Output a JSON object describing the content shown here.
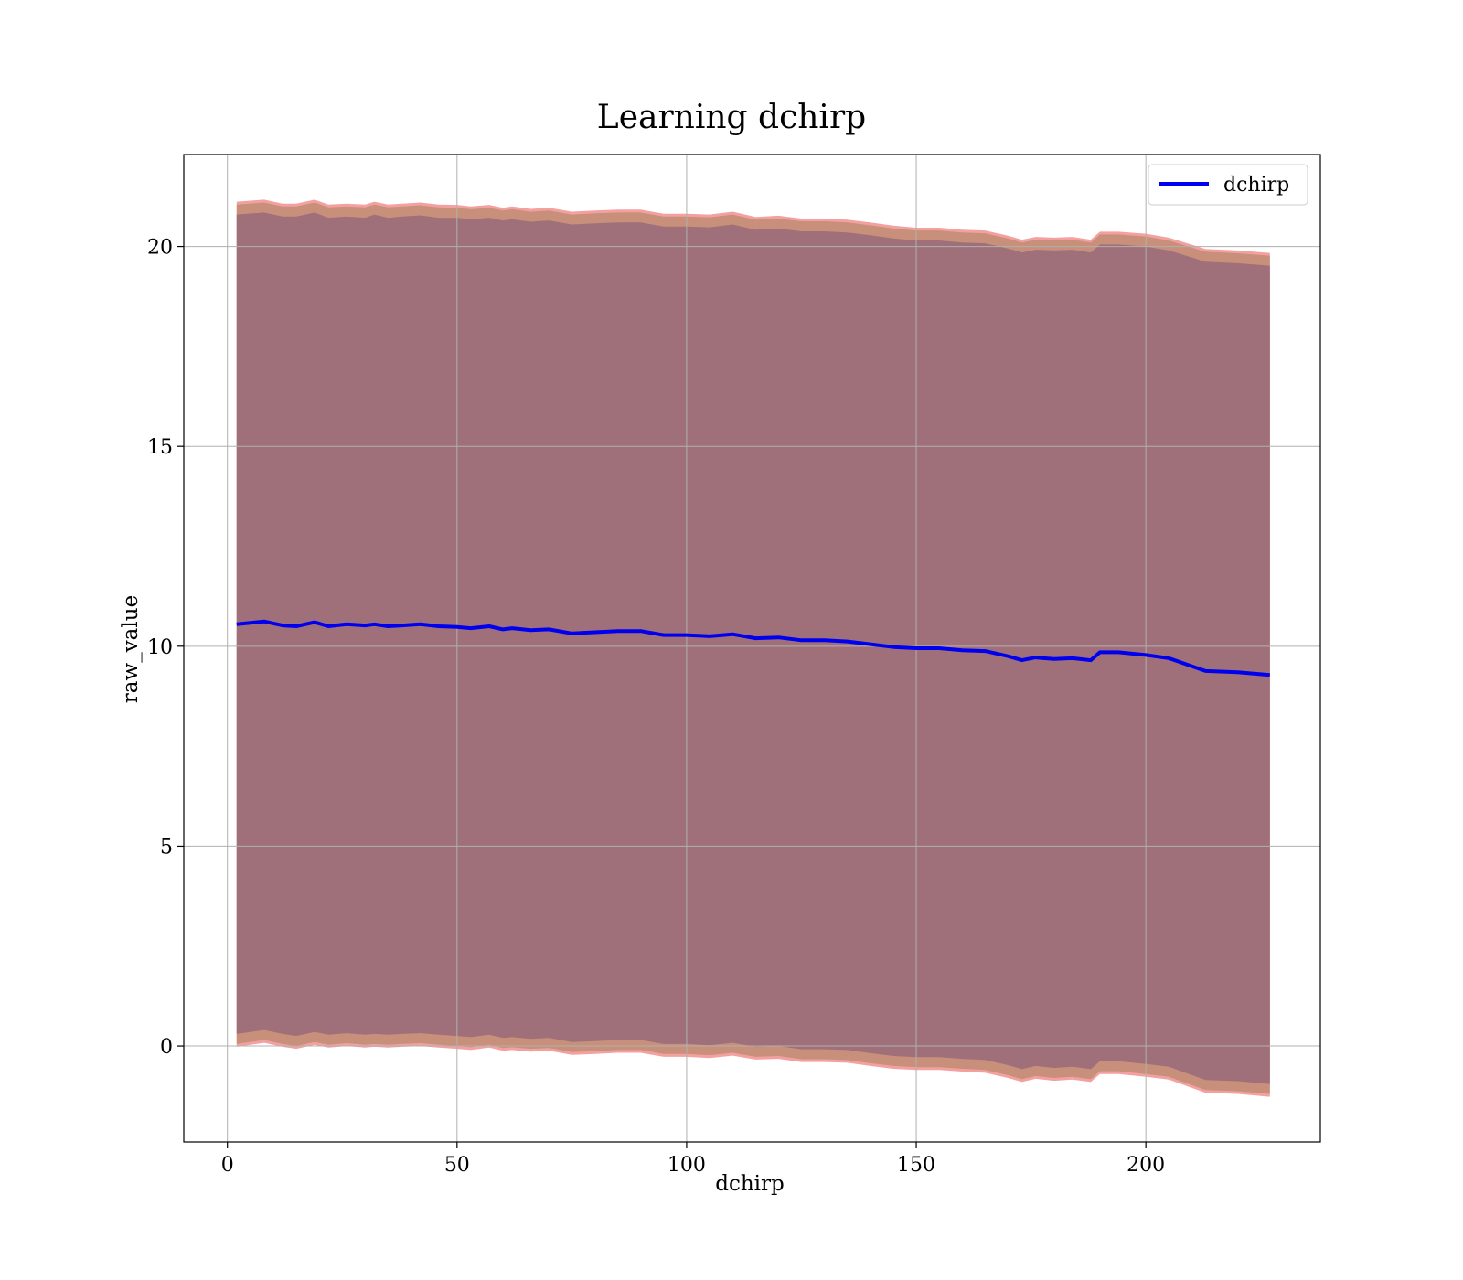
{
  "chart_data": {
    "type": "line",
    "title": "Learning dchirp",
    "xlabel": "dchirp",
    "ylabel": "raw_value",
    "xlim": [
      -9.5,
      238
    ],
    "ylim": [
      -2.4,
      22.3
    ],
    "xticks": [
      0,
      50,
      100,
      150,
      200
    ],
    "yticks": [
      0,
      5,
      10,
      15,
      20
    ],
    "xtick_labels": [
      "0",
      "50",
      "100",
      "150",
      "200"
    ],
    "ytick_labels": [
      "0",
      "5",
      "10",
      "15",
      "20"
    ],
    "grid": true,
    "legend": {
      "placement": "top-right",
      "entries": [
        "dchirp"
      ]
    },
    "colors": {
      "line": "#0000ee",
      "outer_band": "#f4a0a0",
      "middle_band": "#c8907a",
      "inner_band": "#a0707a",
      "grid": "#b0b0b0"
    },
    "series": [
      {
        "name": "dchirp",
        "x": [
          2,
          8,
          12,
          15,
          19,
          22,
          26,
          30,
          32,
          35,
          38,
          42,
          46,
          50,
          53,
          57,
          60,
          62,
          66,
          70,
          75,
          80,
          85,
          90,
          95,
          100,
          105,
          110,
          115,
          120,
          125,
          130,
          135,
          140,
          145,
          150,
          155,
          160,
          165,
          170,
          173,
          176,
          180,
          184,
          188,
          190,
          194,
          200,
          205,
          213,
          220,
          227
        ],
        "y": [
          10.55,
          10.62,
          10.52,
          10.5,
          10.6,
          10.5,
          10.55,
          10.52,
          10.55,
          10.5,
          10.52,
          10.55,
          10.5,
          10.48,
          10.45,
          10.5,
          10.42,
          10.45,
          10.4,
          10.42,
          10.32,
          10.35,
          10.38,
          10.38,
          10.28,
          10.28,
          10.25,
          10.3,
          10.2,
          10.22,
          10.15,
          10.15,
          10.12,
          10.05,
          9.98,
          9.95,
          9.95,
          9.9,
          9.88,
          9.75,
          9.65,
          9.72,
          9.68,
          9.7,
          9.65,
          9.85,
          9.85,
          9.78,
          9.7,
          9.38,
          9.35,
          9.28
        ],
        "bands": {
          "inner_upper": [
            20.8,
            20.85,
            20.75,
            20.75,
            20.85,
            20.72,
            20.75,
            20.72,
            20.8,
            20.72,
            20.75,
            20.78,
            20.72,
            20.72,
            20.68,
            20.72,
            20.65,
            20.68,
            20.62,
            20.65,
            20.55,
            20.58,
            20.6,
            20.6,
            20.5,
            20.5,
            20.48,
            20.55,
            20.42,
            20.45,
            20.38,
            20.38,
            20.35,
            20.28,
            20.2,
            20.15,
            20.15,
            20.1,
            20.08,
            19.95,
            19.85,
            19.92,
            19.9,
            19.92,
            19.85,
            20.05,
            20.05,
            20.0,
            19.9,
            19.62,
            19.58,
            19.52
          ],
          "inner_lower": [
            0.3,
            0.4,
            0.3,
            0.25,
            0.35,
            0.28,
            0.32,
            0.28,
            0.3,
            0.28,
            0.3,
            0.32,
            0.28,
            0.25,
            0.22,
            0.28,
            0.2,
            0.22,
            0.18,
            0.2,
            0.1,
            0.12,
            0.15,
            0.15,
            0.05,
            0.05,
            0.02,
            0.08,
            -0.02,
            0.0,
            -0.08,
            -0.08,
            -0.1,
            -0.18,
            -0.25,
            -0.28,
            -0.28,
            -0.32,
            -0.35,
            -0.48,
            -0.58,
            -0.5,
            -0.55,
            -0.52,
            -0.58,
            -0.38,
            -0.38,
            -0.45,
            -0.52,
            -0.85,
            -0.88,
            -0.95
          ],
          "middle_upper": [
            21.05,
            21.1,
            21.0,
            21.0,
            21.1,
            20.98,
            21.0,
            20.98,
            21.05,
            20.98,
            21.0,
            21.03,
            20.98,
            20.97,
            20.93,
            20.97,
            20.9,
            20.93,
            20.87,
            20.9,
            20.8,
            20.83,
            20.85,
            20.85,
            20.75,
            20.75,
            20.73,
            20.8,
            20.67,
            20.7,
            20.63,
            20.63,
            20.6,
            20.53,
            20.45,
            20.4,
            20.4,
            20.35,
            20.33,
            20.2,
            20.1,
            20.17,
            20.15,
            20.17,
            20.1,
            20.3,
            20.3,
            20.25,
            20.15,
            19.87,
            19.83,
            19.77
          ],
          "middle_lower": [
            0.05,
            0.15,
            0.05,
            0.0,
            0.1,
            0.03,
            0.07,
            0.03,
            0.05,
            0.03,
            0.05,
            0.07,
            0.03,
            0.0,
            -0.03,
            0.03,
            -0.05,
            -0.03,
            -0.07,
            -0.05,
            -0.15,
            -0.13,
            -0.1,
            -0.1,
            -0.2,
            -0.2,
            -0.23,
            -0.17,
            -0.27,
            -0.25,
            -0.33,
            -0.33,
            -0.35,
            -0.43,
            -0.5,
            -0.53,
            -0.53,
            -0.57,
            -0.6,
            -0.73,
            -0.83,
            -0.75,
            -0.8,
            -0.77,
            -0.83,
            -0.63,
            -0.63,
            -0.7,
            -0.77,
            -1.1,
            -1.13,
            -1.2
          ],
          "outer_upper": [
            21.12,
            21.17,
            21.07,
            21.07,
            21.17,
            21.05,
            21.07,
            21.05,
            21.12,
            21.05,
            21.07,
            21.1,
            21.05,
            21.04,
            21.0,
            21.04,
            20.97,
            21.0,
            20.94,
            20.97,
            20.87,
            20.9,
            20.92,
            20.92,
            20.82,
            20.82,
            20.8,
            20.87,
            20.74,
            20.77,
            20.7,
            20.7,
            20.67,
            20.6,
            20.52,
            20.47,
            20.47,
            20.42,
            20.4,
            20.27,
            20.17,
            20.24,
            20.22,
            20.24,
            20.17,
            20.37,
            20.37,
            20.32,
            20.22,
            19.94,
            19.9,
            19.84
          ],
          "outer_lower": [
            -0.02,
            0.08,
            -0.02,
            -0.07,
            0.03,
            -0.04,
            0.0,
            -0.04,
            -0.02,
            -0.04,
            -0.02,
            0.0,
            -0.04,
            -0.07,
            -0.1,
            -0.04,
            -0.12,
            -0.1,
            -0.14,
            -0.12,
            -0.22,
            -0.2,
            -0.17,
            -0.17,
            -0.27,
            -0.27,
            -0.3,
            -0.24,
            -0.34,
            -0.32,
            -0.4,
            -0.4,
            -0.42,
            -0.5,
            -0.57,
            -0.6,
            -0.6,
            -0.64,
            -0.67,
            -0.8,
            -0.9,
            -0.82,
            -0.87,
            -0.84,
            -0.9,
            -0.7,
            -0.7,
            -0.77,
            -0.84,
            -1.17,
            -1.2,
            -1.27
          ]
        }
      }
    ]
  }
}
